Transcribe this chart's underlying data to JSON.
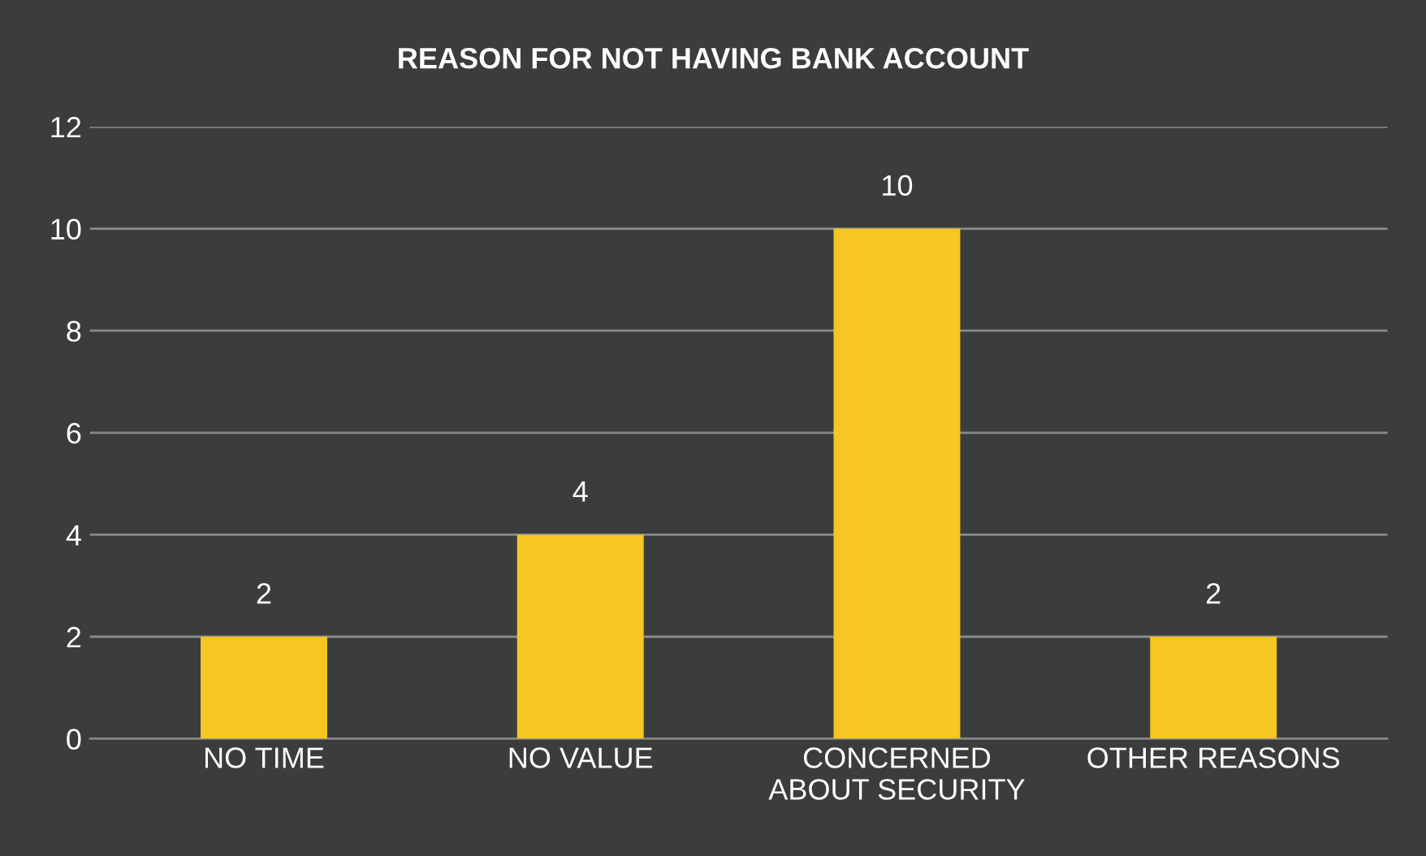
{
  "chart_data": {
    "type": "bar",
    "title": "REASON FOR NOT HAVING BANK ACCOUNT",
    "categories": [
      "NO TIME",
      "NO VALUE",
      "CONCERNED\nABOUT SECURITY",
      "OTHER REASONS"
    ],
    "values": [
      2,
      4,
      10,
      2
    ],
    "color": "#f6c623",
    "ylim": [
      0,
      12
    ],
    "yticks": [
      0,
      2,
      4,
      6,
      8,
      10,
      12
    ],
    "grid": "y",
    "data_labels": true
  }
}
